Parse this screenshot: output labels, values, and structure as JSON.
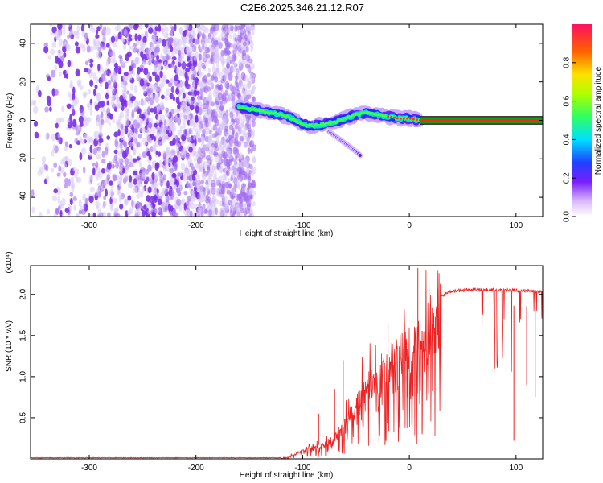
{
  "title": "C2E6.2025.346.21.12.R07",
  "colors": {
    "frame": "#000000",
    "snr_line": "#ee2222",
    "track_core": "#ff2020",
    "track_band": "#10a010",
    "noise_light": "#d8c6f6",
    "noise_dark": "#7a2fe8"
  },
  "chart_data": [
    {
      "id": "spectrogram",
      "type": "heatmap",
      "title": "C2E6.2025.346.21.12.R07",
      "xlabel": "Height of straight line (km)",
      "ylabel": "Frequency (Hz)",
      "xlim": [
        -355,
        125
      ],
      "ylim": [
        -50,
        50
      ],
      "x_ticks": [
        -300,
        -200,
        -100,
        0,
        100
      ],
      "y_ticks": [
        -40,
        -20,
        0,
        20,
        40
      ],
      "grid": false,
      "noise_region": {
        "x_from": -355,
        "x_to": -145,
        "freq_from": -50,
        "freq_to": 50
      },
      "signal_track": [
        {
          "x": -160,
          "f": 7
        },
        {
          "x": -150,
          "f": 6
        },
        {
          "x": -140,
          "f": 5
        },
        {
          "x": -130,
          "f": 4
        },
        {
          "x": -120,
          "f": 3
        },
        {
          "x": -110,
          "f": 1
        },
        {
          "x": -100,
          "f": -2
        },
        {
          "x": -90,
          "f": -3
        },
        {
          "x": -80,
          "f": -2
        },
        {
          "x": -70,
          "f": -1
        },
        {
          "x": -60,
          "f": 1
        },
        {
          "x": -50,
          "f": 3
        },
        {
          "x": -40,
          "f": 4
        },
        {
          "x": -30,
          "f": 3
        },
        {
          "x": -20,
          "f": 2
        },
        {
          "x": -10,
          "f": 1
        },
        {
          "x": 0,
          "f": 1
        },
        {
          "x": 10,
          "f": 0
        }
      ],
      "branch": [
        {
          "x": -75,
          "f": -6
        },
        {
          "x": -65,
          "f": -10
        },
        {
          "x": -55,
          "f": -14
        },
        {
          "x": -48,
          "f": -17
        },
        {
          "x": -45,
          "f": -19
        }
      ],
      "carrier": {
        "x_from": 10,
        "x_to": 125,
        "f": 0,
        "half_width": 2
      },
      "colorbar": {
        "label": "Normalized spectral amplitude",
        "ticks": [
          "0.0",
          "0.2",
          "0.4",
          "0.6",
          "0.8"
        ],
        "tick_values": [
          0,
          0.2,
          0.4,
          0.6,
          0.8
        ],
        "range": [
          0,
          1
        ]
      }
    },
    {
      "id": "snr",
      "type": "line",
      "xlabel": "Height of straight line (km)",
      "ylabel": "SNR (10 * v/v)",
      "y_exponent": "(x10⁴)",
      "xlim": [
        -355,
        125
      ],
      "ylim": [
        0,
        2.35
      ],
      "x_ticks": [
        -300,
        -200,
        -100,
        0,
        100
      ],
      "y_ticks": [
        0.5,
        1.0,
        1.5,
        2.0
      ],
      "y_tick_labels": [
        "0.5",
        "1.0",
        "1.5",
        "2.0"
      ],
      "grid": false,
      "envelope": [
        {
          "x": -355,
          "v": 0.01
        },
        {
          "x": -120,
          "v": 0.01
        },
        {
          "x": -110,
          "v": 0.05
        },
        {
          "x": -100,
          "v": 0.12
        },
        {
          "x": -90,
          "v": 0.18
        },
        {
          "x": -80,
          "v": 0.2
        },
        {
          "x": -70,
          "v": 0.3
        },
        {
          "x": -60,
          "v": 0.55
        },
        {
          "x": -50,
          "v": 0.8
        },
        {
          "x": -40,
          "v": 1.0
        },
        {
          "x": -30,
          "v": 1.2
        },
        {
          "x": -20,
          "v": 1.4
        },
        {
          "x": -10,
          "v": 1.5
        },
        {
          "x": 0,
          "v": 1.6
        },
        {
          "x": 10,
          "v": 1.7
        },
        {
          "x": 20,
          "v": 1.85
        },
        {
          "x": 30,
          "v": 2.0
        },
        {
          "x": 40,
          "v": 2.06
        },
        {
          "x": 60,
          "v": 2.08
        },
        {
          "x": 100,
          "v": 2.07
        },
        {
          "x": 125,
          "v": 2.05
        }
      ],
      "spikes": [
        {
          "x": -85,
          "v": 0.55
        },
        {
          "x": -70,
          "v": 0.85
        },
        {
          "x": -62,
          "v": 1.2
        },
        {
          "x": -20,
          "v": 1.65
        },
        {
          "x": 8,
          "v": 2.32
        },
        {
          "x": 12,
          "v": 0.3
        },
        {
          "x": 98,
          "v": 0.22
        },
        {
          "x": 110,
          "v": 0.9
        },
        {
          "x": 118,
          "v": 0.75
        }
      ]
    }
  ]
}
